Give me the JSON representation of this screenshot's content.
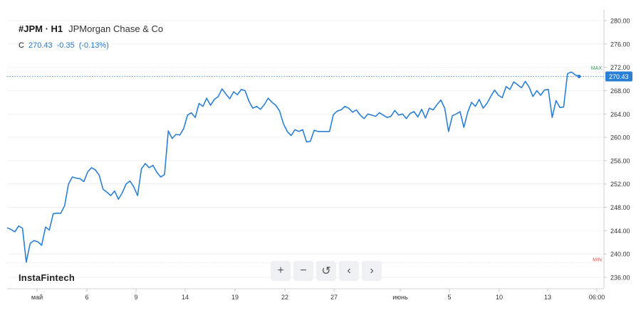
{
  "header": {
    "ticker": "#JPM · H1",
    "company": "JPMorgan Chase & Co",
    "close_label": "C",
    "close_value": "270.43",
    "change": "-0.35",
    "change_pct": "(-0.13%)"
  },
  "brand": "InstaFintech",
  "toolbar": {
    "zoom_in": "+",
    "zoom_out": "−",
    "reset": "↺",
    "prev": "‹",
    "next": "›"
  },
  "colors": {
    "line": "#2b7fd4",
    "max_marker": "#2e9e4f",
    "min_marker": "#d9534f",
    "badge": "#2b7fd4",
    "grid": "#e6e8ec"
  },
  "chart_data": {
    "type": "line",
    "title": "",
    "xlabel": "",
    "ylabel": "",
    "ylim": [
      234,
      281
    ],
    "y_ticks": [
      "280.00",
      "276.00",
      "272.00",
      "268.00",
      "264.00",
      "260.00",
      "256.00",
      "252.00",
      "248.00",
      "244.00",
      "240.00",
      "236.00"
    ],
    "x_ticks": [
      "май",
      "6",
      "9",
      "14",
      "19",
      "22",
      "27",
      "июнь",
      "5",
      "10",
      "13",
      "06:00"
    ],
    "last_price": "270.43",
    "max_label": "MAX",
    "min_label": "MIN",
    "max_value": 271.2,
    "min_value": 238.5,
    "series": [
      {
        "values": [
          244.5,
          244.2,
          243.8,
          244.8,
          244.4,
          238.6,
          241.8,
          242.3,
          242.1,
          241.5,
          244.6,
          244.1,
          246.9,
          247.0,
          247.0,
          248.3,
          252.0,
          253.2,
          253.0,
          252.9,
          252.4,
          254.1,
          254.8,
          254.4,
          253.5,
          251.1,
          250.6,
          250.0,
          250.8,
          249.4,
          250.5,
          252.0,
          252.5,
          251.5,
          250.0,
          254.6,
          255.5,
          254.8,
          255.2,
          254.0,
          253.2,
          253.6,
          261.1,
          259.8,
          260.5,
          260.4,
          261.5,
          263.8,
          264.2,
          263.4,
          265.8,
          265.3,
          266.7,
          265.5,
          266.5,
          267.0,
          268.3,
          267.4,
          266.6,
          267.8,
          267.3,
          268.2,
          268.0,
          266.2,
          265.0,
          265.3,
          264.8,
          265.6,
          266.7,
          266.0,
          265.5,
          264.5,
          262.3,
          261.0,
          260.3,
          261.3,
          261.0,
          261.3,
          259.2,
          259.3,
          261.2,
          261.0,
          261.0,
          261.0,
          261.0,
          263.9,
          264.5,
          264.7,
          265.3,
          265.0,
          264.3,
          264.7,
          263.8,
          263.2,
          264.0,
          263.8,
          263.6,
          264.2,
          263.8,
          263.4,
          263.6,
          264.6,
          263.8,
          264.0,
          263.2,
          264.1,
          264.4,
          263.5,
          264.8,
          263.3,
          265.0,
          264.7,
          265.6,
          266.4,
          265.0,
          261.0,
          263.7,
          264.0,
          264.4,
          261.7,
          264.3,
          266.0,
          265.3,
          266.5,
          265.0,
          265.8,
          267.0,
          268.1,
          267.2,
          266.8,
          268.7,
          268.2,
          269.5,
          269.0,
          268.5,
          269.6,
          268.6,
          267.0,
          268.0,
          267.2,
          268.1,
          268.2,
          263.4,
          266.3,
          265.1,
          265.2,
          270.9,
          271.2,
          270.7,
          270.43
        ]
      }
    ]
  }
}
